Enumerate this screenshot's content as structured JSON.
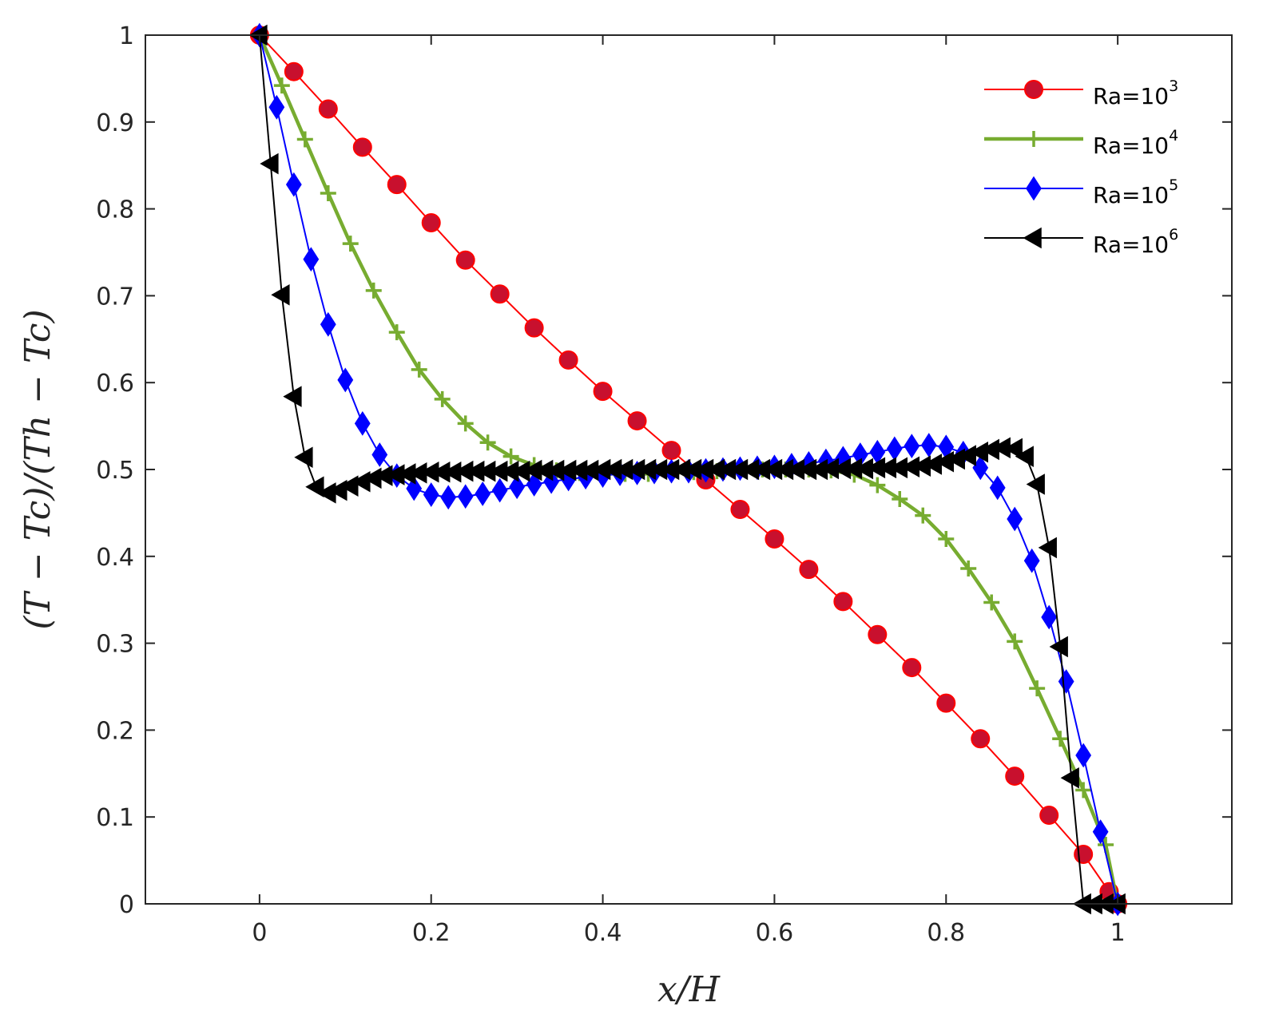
{
  "chart_data": {
    "type": "line",
    "xlabel": "x/H",
    "ylabel": "(T − Tc)/(Th − Tc)",
    "xlim": [
      -0.133,
      1.133
    ],
    "ylim": [
      0,
      1
    ],
    "xticks": [
      0,
      0.2,
      0.4,
      0.6,
      0.8,
      1
    ],
    "xtick_labels": [
      "0",
      "0.2",
      "0.4",
      "0.6",
      "0.8",
      "1"
    ],
    "yticks": [
      0,
      0.1,
      0.2,
      0.3,
      0.4,
      0.5,
      0.6,
      0.7,
      0.8,
      0.9,
      1
    ],
    "ytick_labels": [
      "0",
      "0.1",
      "0.2",
      "0.3",
      "0.4",
      "0.5",
      "0.6",
      "0.7",
      "0.8",
      "0.9",
      "1"
    ],
    "grid": false,
    "legend_position": "top-right",
    "series": [
      {
        "name": "Ra=10^3",
        "label_base": "Ra=10",
        "label_exp": "3",
        "color": "#ff0000",
        "marker": "circle",
        "marker_fill": "#c8102e",
        "x": [
          0,
          0.04,
          0.08,
          0.12,
          0.16,
          0.2,
          0.24,
          0.28,
          0.32,
          0.36,
          0.4,
          0.44,
          0.48,
          0.52,
          0.56,
          0.6,
          0.64,
          0.68,
          0.72,
          0.76,
          0.8,
          0.84,
          0.88,
          0.92,
          0.96,
          0.99,
          1.0
        ],
        "y": [
          1,
          0.958,
          0.915,
          0.871,
          0.828,
          0.784,
          0.741,
          0.702,
          0.663,
          0.626,
          0.59,
          0.556,
          0.522,
          0.488,
          0.454,
          0.42,
          0.385,
          0.348,
          0.31,
          0.272,
          0.231,
          0.19,
          0.147,
          0.102,
          0.057,
          0.014,
          0
        ]
      },
      {
        "name": "Ra=10^4",
        "label_base": "Ra=10",
        "label_exp": "4",
        "color": "#77ac30",
        "marker": "plus",
        "marker_fill": "#77ac30",
        "x": [
          0,
          0.026,
          0.053,
          0.08,
          0.106,
          0.133,
          0.16,
          0.186,
          0.213,
          0.24,
          0.266,
          0.293,
          0.32,
          0.346,
          0.373,
          0.4,
          0.426,
          0.453,
          0.48,
          0.506,
          0.533,
          0.56,
          0.586,
          0.613,
          0.64,
          0.666,
          0.693,
          0.72,
          0.746,
          0.773,
          0.8,
          0.826,
          0.853,
          0.88,
          0.906,
          0.933,
          0.96,
          0.986,
          1.0
        ],
        "y": [
          1,
          0.942,
          0.88,
          0.818,
          0.76,
          0.706,
          0.658,
          0.615,
          0.581,
          0.553,
          0.531,
          0.515,
          0.505,
          0.499,
          0.496,
          0.495,
          0.495,
          0.495,
          0.496,
          0.497,
          0.498,
          0.499,
          0.5,
          0.5,
          0.5,
          0.499,
          0.494,
          0.482,
          0.466,
          0.447,
          0.42,
          0.386,
          0.347,
          0.302,
          0.248,
          0.19,
          0.131,
          0.068,
          0
        ]
      },
      {
        "name": "Ra=10^5",
        "label_base": "Ra=10",
        "label_exp": "5",
        "color": "#0000ff",
        "marker": "diamond",
        "marker_fill": "#0000ff",
        "x": [
          0,
          0.02,
          0.04,
          0.06,
          0.08,
          0.1,
          0.12,
          0.14,
          0.16,
          0.18,
          0.2,
          0.22,
          0.24,
          0.26,
          0.28,
          0.3,
          0.32,
          0.34,
          0.36,
          0.38,
          0.4,
          0.42,
          0.44,
          0.46,
          0.48,
          0.5,
          0.52,
          0.54,
          0.56,
          0.58,
          0.6,
          0.62,
          0.64,
          0.66,
          0.68,
          0.7,
          0.72,
          0.74,
          0.76,
          0.78,
          0.8,
          0.82,
          0.84,
          0.86,
          0.88,
          0.9,
          0.92,
          0.94,
          0.96,
          0.98,
          1.0
        ],
        "y": [
          1,
          0.917,
          0.828,
          0.742,
          0.667,
          0.603,
          0.553,
          0.517,
          0.493,
          0.478,
          0.471,
          0.468,
          0.469,
          0.472,
          0.476,
          0.48,
          0.483,
          0.486,
          0.489,
          0.491,
          0.493,
          0.495,
          0.496,
          0.497,
          0.498,
          0.498,
          0.499,
          0.5,
          0.501,
          0.502,
          0.503,
          0.505,
          0.507,
          0.51,
          0.513,
          0.517,
          0.52,
          0.524,
          0.527,
          0.528,
          0.526,
          0.519,
          0.502,
          0.479,
          0.443,
          0.395,
          0.33,
          0.256,
          0.171,
          0.083,
          0
        ]
      },
      {
        "name": "Ra=10^6",
        "label_base": "Ra=10",
        "label_exp": "6",
        "color": "#000000",
        "marker": "triangle-left",
        "marker_fill": "#000000",
        "x": [
          0,
          0.013,
          0.026,
          0.04,
          0.053,
          0.066,
          0.08,
          0.093,
          0.106,
          0.12,
          0.133,
          0.146,
          0.16,
          0.173,
          0.186,
          0.2,
          0.213,
          0.226,
          0.24,
          0.253,
          0.266,
          0.28,
          0.293,
          0.306,
          0.32,
          0.333,
          0.346,
          0.36,
          0.373,
          0.386,
          0.4,
          0.413,
          0.426,
          0.44,
          0.453,
          0.466,
          0.48,
          0.493,
          0.506,
          0.52,
          0.533,
          0.546,
          0.56,
          0.573,
          0.586,
          0.6,
          0.613,
          0.626,
          0.64,
          0.653,
          0.666,
          0.68,
          0.693,
          0.706,
          0.72,
          0.733,
          0.746,
          0.76,
          0.773,
          0.786,
          0.8,
          0.813,
          0.826,
          0.84,
          0.853,
          0.866,
          0.88,
          0.893,
          0.906,
          0.92,
          0.933,
          0.946,
          0.96,
          0.973,
          0.986,
          1.0
        ],
        "y": [
          1,
          0.852,
          0.701,
          0.584,
          0.514,
          0.48,
          0.473,
          0.476,
          0.481,
          0.486,
          0.49,
          0.493,
          0.494,
          0.495,
          0.496,
          0.497,
          0.497,
          0.497,
          0.498,
          0.498,
          0.498,
          0.498,
          0.498,
          0.498,
          0.499,
          0.499,
          0.499,
          0.499,
          0.499,
          0.499,
          0.5,
          0.5,
          0.5,
          0.5,
          0.5,
          0.5,
          0.5,
          0.5,
          0.5,
          0.5,
          0.5,
          0.5,
          0.5,
          0.5,
          0.5,
          0.5,
          0.5,
          0.5,
          0.5,
          0.5,
          0.501,
          0.501,
          0.501,
          0.501,
          0.502,
          0.502,
          0.502,
          0.503,
          0.504,
          0.506,
          0.509,
          0.512,
          0.516,
          0.52,
          0.523,
          0.525,
          0.524,
          0.515,
          0.483,
          0.41,
          0.296,
          0.145,
          0,
          0,
          0,
          0
        ]
      }
    ]
  }
}
